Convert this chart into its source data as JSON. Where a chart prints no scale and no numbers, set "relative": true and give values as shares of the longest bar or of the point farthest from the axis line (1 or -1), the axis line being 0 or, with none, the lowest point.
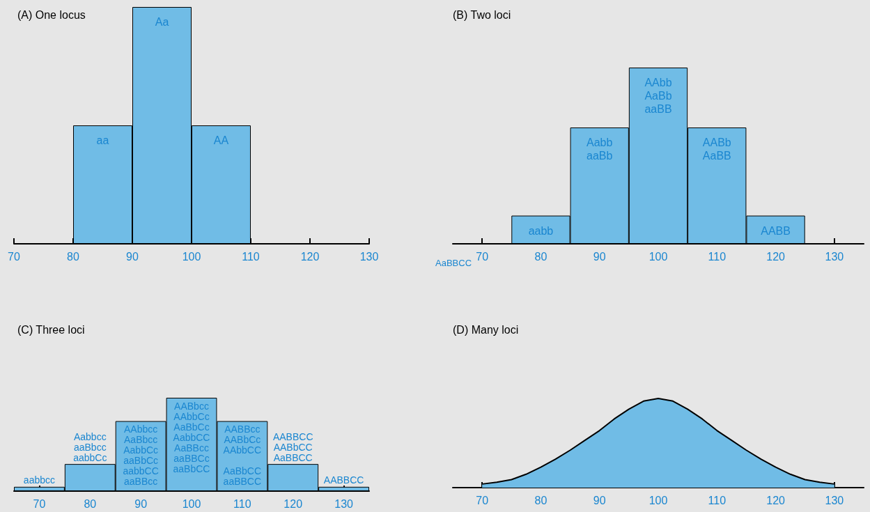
{
  "chart_data": [
    {
      "type": "bar",
      "title": "(A) One locus",
      "relative": true,
      "x": [
        85,
        95,
        105
      ],
      "values": [
        0.5,
        1,
        0.5
      ],
      "color": "#70bce6",
      "xlim": [
        70,
        130
      ],
      "xticks": [
        70,
        80,
        90,
        100,
        110,
        120,
        130
      ],
      "grid": false,
      "annotations": [
        {
          "text": "aa",
          "x": 85,
          "y": 0.5
        },
        {
          "text": "Aa",
          "x": 95,
          "y": 1
        },
        {
          "text": "AA",
          "x": 105,
          "y": 0.5
        }
      ]
    },
    {
      "type": "bar",
      "title": "(B) Two loci",
      "relative": true,
      "x": [
        80,
        90,
        100,
        110,
        120
      ],
      "values": [
        0.16,
        0.66,
        1,
        0.66,
        0.16
      ],
      "color": "#70bce6",
      "xlim": [
        65,
        135
      ],
      "xticks": [
        70,
        80,
        90,
        100,
        110,
        120,
        130
      ],
      "grid": false,
      "annotations": [
        {
          "text": "aabb",
          "x": 80,
          "y": 0.16
        },
        {
          "text": "Aabb\naaBb",
          "x": 90,
          "y": 0.66
        },
        {
          "text": "AAbb\nAaBb\naaBB",
          "x": 100,
          "y": 1
        },
        {
          "text": "AABb\nAaBB",
          "x": 110,
          "y": 0.66
        },
        {
          "text": "AABB",
          "x": 120,
          "y": 0.16
        },
        "AaBBCC"
      ]
    },
    {
      "type": "bar",
      "title": "(C) Three loci",
      "relative": true,
      "x": [
        70,
        80,
        90,
        100,
        110,
        120,
        130
      ],
      "values": [
        0.046,
        0.29,
        0.75,
        1,
        0.75,
        0.29,
        0.046
      ],
      "color": "#70bce6",
      "xlim": [
        65,
        135
      ],
      "xticks": [
        70,
        80,
        90,
        100,
        110,
        120,
        130
      ],
      "grid": false,
      "annotations": [
        {
          "text": "aabbcc",
          "x": 70,
          "y": 0.046
        },
        {
          "text": "Aabbcc\naaBbcc\naabbCc",
          "x": 80,
          "y": 0.29
        },
        {
          "text": "AAbbcc\nAaBbcc\nAabbCc\naaBbCc\naabbCC\naaBBcc",
          "x": 90,
          "y": 0.75
        },
        {
          "text": "AABbcc\nAAbbCc\nAaBbCc\nAabbCC\nAaBBcc\naaBBCc\naaBbCC",
          "x": 100,
          "y": 1
        },
        {
          "text": "AABBcc\nAABbCc\nAAbbCC\n\nAaBbCC\naaBBCC",
          "x": 110,
          "y": 0.75
        },
        {
          "text": "AABBCC\nAABbCC\nAaBBCC",
          "x": 120,
          "y": 0.29
        },
        {
          "text": "AABBCC",
          "x": 130,
          "y": 0.046
        }
      ]
    },
    {
      "type": "area",
      "title": "(D) Many loci",
      "relative": true,
      "color": "#70bce6",
      "x": [
        70,
        72.5,
        75,
        77.5,
        80,
        82.5,
        85,
        87.5,
        90,
        92.5,
        95,
        97.5,
        100,
        102.5,
        105,
        107.5,
        110,
        112.5,
        115,
        117.5,
        120,
        122.5,
        125,
        127.5,
        130
      ],
      "values": [
        0.04,
        0.06,
        0.09,
        0.15,
        0.23,
        0.32,
        0.42,
        0.53,
        0.64,
        0.77,
        0.88,
        0.97,
        1,
        0.97,
        0.88,
        0.77,
        0.64,
        0.53,
        0.42,
        0.32,
        0.23,
        0.15,
        0.09,
        0.06,
        0.04
      ],
      "xlim": [
        65,
        135
      ],
      "xticks": [
        70,
        80,
        90,
        100,
        110,
        120,
        130
      ],
      "grid": false
    }
  ]
}
